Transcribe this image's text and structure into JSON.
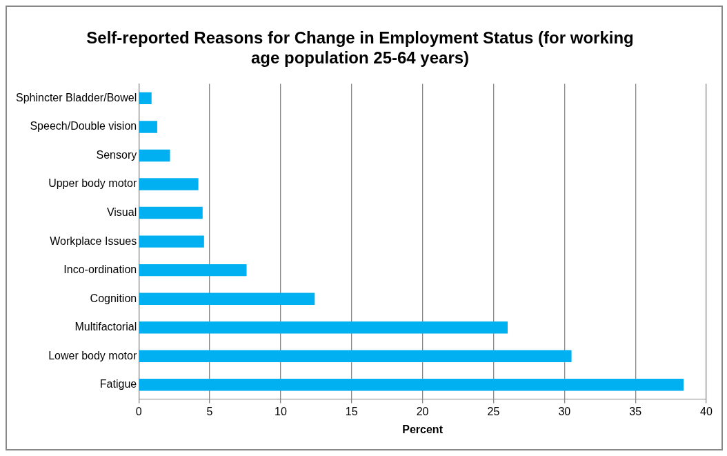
{
  "chart_data": {
    "type": "bar",
    "orientation": "horizontal",
    "title": "Self-reported Reasons for Change in Employment Status (for working age population 25-64 years)",
    "xlabel": "Percent",
    "categories": [
      "Sphincter Bladder/Bowel",
      "Speech/Double vision",
      "Sensory",
      "Upper body motor",
      "Visual",
      "Workplace Issues",
      "Inco-ordination",
      "Cognition",
      "Multifactorial",
      "Lower body motor",
      "Fatigue"
    ],
    "values": [
      0.9,
      1.3,
      2.2,
      4.2,
      4.5,
      4.6,
      7.6,
      12.4,
      26.0,
      30.5,
      38.4
    ],
    "color": "#00b0f0",
    "xlim": [
      0,
      40
    ],
    "xticks": [
      0,
      5,
      10,
      15,
      20,
      25,
      30,
      35,
      40
    ],
    "grid": "x",
    "legend": false
  }
}
